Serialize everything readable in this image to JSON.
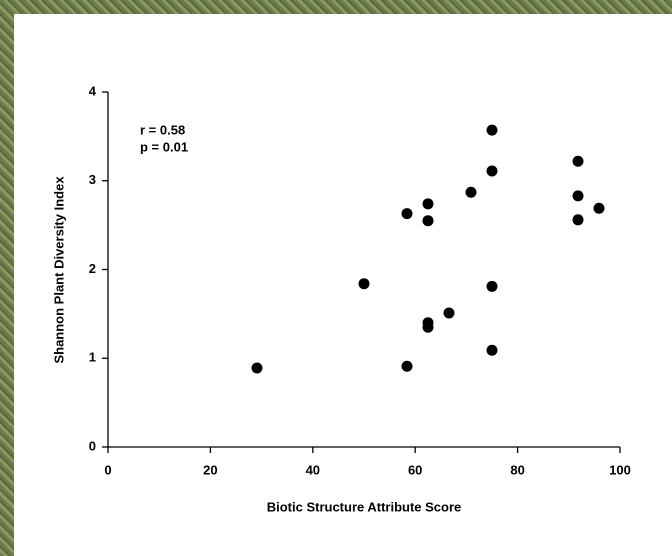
{
  "chart_data": {
    "type": "scatter",
    "xlabel": "Biotic Structure Attribute Score",
    "ylabel": "Shannon Plant Diversity Index",
    "annotations": [
      "r = 0.58",
      "p = 0.01"
    ],
    "x": [
      29.1,
      58.4,
      50,
      58.4,
      66.6,
      62.5,
      62.5,
      62.5,
      62.5,
      70.9,
      75,
      75,
      75,
      75,
      91.8,
      91.8,
      91.8,
      95.9
    ],
    "values": [
      0.89,
      0.91,
      1.84,
      2.63,
      1.51,
      1.4,
      1.35,
      2.74,
      2.55,
      2.87,
      3.57,
      3.11,
      1.81,
      1.09,
      3.22,
      2.83,
      2.56,
      2.69
    ],
    "color": "#000000",
    "xlim": [
      0,
      100
    ],
    "xticks": [
      0,
      20,
      40,
      60,
      80,
      100
    ],
    "ylim": [
      0,
      4
    ],
    "yticks": [
      0,
      1,
      2,
      3,
      4
    ],
    "grid": false
  }
}
